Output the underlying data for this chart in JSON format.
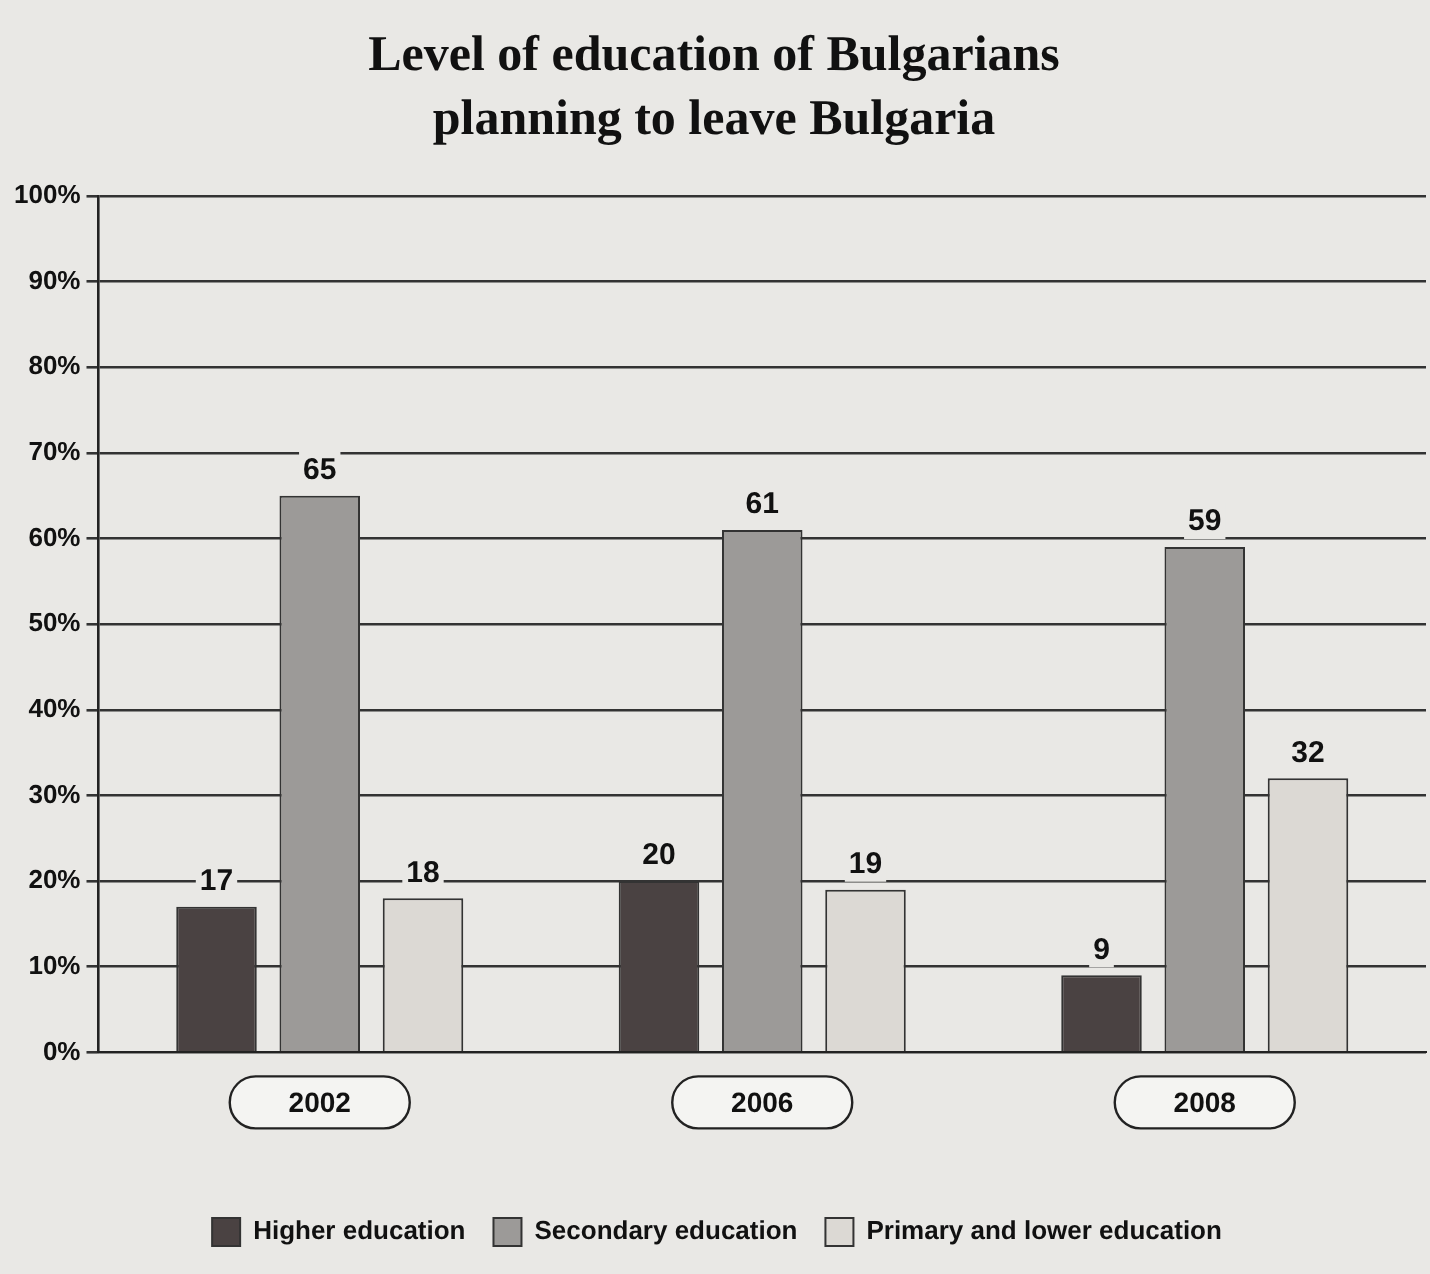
{
  "chart_data": {
    "type": "bar",
    "title": "Level of education of Bulgarians planning to leave Bulgaria",
    "categories": [
      "2002",
      "2006",
      "2008"
    ],
    "series": [
      {
        "name": "Higher education",
        "color": "#4a4242",
        "values": [
          17,
          20,
          9
        ]
      },
      {
        "name": "Secondary education",
        "color": "#9c9a98",
        "values": [
          65,
          61,
          59
        ]
      },
      {
        "name": "Primary and lower education",
        "color": "#dcd9d4",
        "values": [
          18,
          19,
          32
        ]
      }
    ],
    "ylim": [
      0,
      100
    ],
    "yticks": [
      {
        "value": 0,
        "label": "0%"
      },
      {
        "value": 10,
        "label": "10%"
      },
      {
        "value": 20,
        "label": "20%"
      },
      {
        "value": 30,
        "label": "30%"
      },
      {
        "value": 40,
        "label": "40%"
      },
      {
        "value": 50,
        "label": "50%"
      },
      {
        "value": 60,
        "label": "60%"
      },
      {
        "value": 70,
        "label": "70%"
      },
      {
        "value": 80,
        "label": "80%"
      },
      {
        "value": 90,
        "label": "90%"
      },
      {
        "value": 100,
        "label": "100%"
      }
    ],
    "grid": "y",
    "legend": "bottom",
    "data_labels": true
  }
}
